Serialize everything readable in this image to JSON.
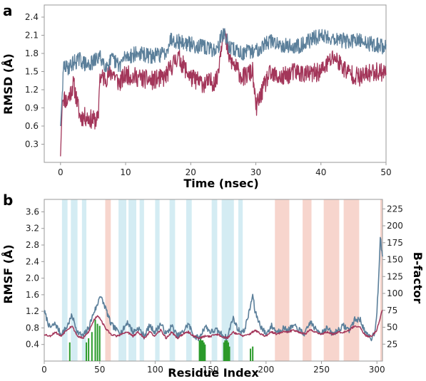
{
  "colors": {
    "series_blue": "#5b7f9a",
    "series_red": "#a3365a",
    "helix_band": "#d4ecf3",
    "sheet_band": "#f7d5cd",
    "contact_bars": "#2a9a2a",
    "axis": "#9a9a9a",
    "text": "#222222"
  },
  "panels": {
    "a": {
      "letter": "a"
    },
    "b": {
      "letter": "b"
    }
  },
  "chart_data": [
    {
      "type": "line",
      "panel": "a",
      "title": "",
      "xlabel": "Time (nsec)",
      "ylabel": "RMSD (Å)",
      "xlim": [
        -2.5,
        50
      ],
      "ylim": [
        0,
        2.6
      ],
      "xticks": [
        0,
        10,
        20,
        30,
        40,
        50
      ],
      "yticks": [
        0.3,
        0.6,
        0.9,
        1.2,
        1.5,
        1.8,
        2.1,
        2.4
      ],
      "xtick_labels": [
        "0",
        "10",
        "20",
        "30",
        "40",
        "50"
      ],
      "ytick_labels": [
        "0.3",
        "0.6",
        "0.9",
        "1.2",
        "1.5",
        "1.8",
        "2.1",
        "2.4"
      ],
      "grid": false,
      "series": [
        {
          "color": "blue",
          "x": [
            0,
            0.5,
            1,
            2,
            3,
            4,
            5,
            6,
            7,
            8,
            9,
            10,
            12,
            14,
            16,
            17,
            18,
            20,
            22,
            24,
            25,
            26,
            28,
            30,
            32,
            34,
            36,
            38,
            40,
            42,
            44,
            46,
            48,
            50
          ],
          "y": [
            0.6,
            1.6,
            1.55,
            1.65,
            1.7,
            1.6,
            1.65,
            1.75,
            1.6,
            1.7,
            1.6,
            1.75,
            1.8,
            1.75,
            1.8,
            2.05,
            2.0,
            1.95,
            1.9,
            1.85,
            2.15,
            1.9,
            1.8,
            1.85,
            2.0,
            1.95,
            1.9,
            2.0,
            2.1,
            2.05,
            2.0,
            2.0,
            1.95,
            1.9
          ]
        },
        {
          "color": "red",
          "x": [
            0,
            0.3,
            1,
            2,
            3,
            4,
            5,
            5.8,
            6,
            7,
            8,
            9,
            10,
            12,
            14,
            16,
            18,
            20,
            22,
            24,
            25,
            26,
            28,
            29.5,
            30,
            32,
            34,
            36,
            38,
            40,
            42,
            44,
            46,
            48,
            50
          ],
          "y": [
            0.1,
            1.1,
            1.0,
            1.3,
            0.75,
            0.75,
            0.7,
            0.7,
            1.4,
            1.4,
            1.5,
            1.3,
            1.45,
            1.4,
            1.35,
            1.4,
            1.75,
            1.4,
            1.3,
            1.35,
            2.2,
            1.7,
            1.4,
            1.5,
            0.9,
            1.45,
            1.4,
            1.5,
            1.45,
            1.5,
            1.75,
            1.5,
            1.4,
            1.5,
            1.5
          ]
        }
      ]
    },
    {
      "type": "line",
      "panel": "b",
      "title": "",
      "xlabel": "Residue Index",
      "ylabel": "RMSF (Å)",
      "ylabel_right": "B-factor",
      "xlim": [
        0,
        305
      ],
      "ylim": [
        0,
        3.9
      ],
      "ylim_right": [
        0,
        239
      ],
      "xticks": [
        0,
        50,
        100,
        150,
        200,
        250,
        300
      ],
      "yticks": [
        0.4,
        0.8,
        1.2,
        1.6,
        2.0,
        2.4,
        2.8,
        3.2,
        3.6
      ],
      "yticks_right": [
        25,
        50,
        75,
        100,
        125,
        150,
        175,
        200,
        225
      ],
      "xtick_labels": [
        "0",
        "50",
        "100",
        "150",
        "200",
        "250",
        "300"
      ],
      "ytick_labels": [
        "0.4",
        "0.8",
        "1.2",
        "1.6",
        "2.0",
        "2.4",
        "2.8",
        "3.2",
        "3.6"
      ],
      "ytick_labels_right": [
        "25",
        "50",
        "75",
        "100",
        "125",
        "150",
        "175",
        "200",
        "225"
      ],
      "grid": false,
      "helix_bands": [
        [
          16,
          21
        ],
        [
          24,
          30
        ],
        [
          34,
          38
        ],
        [
          67,
          74
        ],
        [
          76,
          83
        ],
        [
          86,
          90
        ],
        [
          100,
          104
        ],
        [
          113,
          118
        ],
        [
          128,
          133
        ],
        [
          151,
          156
        ],
        [
          160,
          171
        ],
        [
          175,
          179
        ]
      ],
      "sheet_bands": [
        [
          55,
          60
        ],
        [
          208,
          221
        ],
        [
          233,
          241
        ],
        [
          252,
          266
        ],
        [
          270,
          284
        ],
        [
          303,
          307
        ]
      ],
      "contact_bars": [
        {
          "x": 23,
          "h": 0.45
        },
        {
          "x": 38,
          "h": 0.45
        },
        {
          "x": 40,
          "h": 0.55
        },
        {
          "x": 43,
          "h": 0.7
        },
        {
          "x": 46,
          "h": 1.0
        },
        {
          "x": 48,
          "h": 0.9
        },
        {
          "x": 50,
          "h": 0.85
        },
        {
          "x": 140,
          "h": 0.5
        },
        {
          "x": 141,
          "h": 0.55
        },
        {
          "x": 142,
          "h": 0.5
        },
        {
          "x": 143,
          "h": 0.5
        },
        {
          "x": 144,
          "h": 0.45
        },
        {
          "x": 145,
          "h": 0.4
        },
        {
          "x": 162,
          "h": 0.45
        },
        {
          "x": 163,
          "h": 0.5
        },
        {
          "x": 164,
          "h": 0.55
        },
        {
          "x": 165,
          "h": 0.5
        },
        {
          "x": 166,
          "h": 0.45
        },
        {
          "x": 167,
          "h": 0.35
        },
        {
          "x": 186,
          "h": 0.3
        },
        {
          "x": 188,
          "h": 0.35
        }
      ],
      "series": [
        {
          "color": "blue",
          "axis": "left",
          "x": [
            0,
            5,
            10,
            15,
            20,
            25,
            30,
            35,
            40,
            45,
            48,
            50,
            55,
            60,
            65,
            70,
            75,
            80,
            85,
            90,
            95,
            100,
            105,
            110,
            115,
            120,
            125,
            130,
            135,
            140,
            145,
            150,
            155,
            160,
            165,
            170,
            175,
            180,
            185,
            188,
            190,
            195,
            200,
            205,
            210,
            215,
            220,
            225,
            230,
            235,
            240,
            245,
            250,
            255,
            260,
            265,
            270,
            275,
            280,
            285,
            290,
            295,
            298,
            300,
            302,
            303,
            305
          ],
          "y": [
            1.2,
            0.8,
            0.9,
            0.65,
            0.8,
            1.1,
            0.7,
            0.6,
            0.8,
            1.2,
            1.35,
            1.6,
            1.3,
            0.9,
            0.75,
            0.7,
            0.95,
            0.7,
            0.8,
            0.6,
            0.85,
            0.7,
            0.9,
            0.65,
            0.85,
            0.6,
            0.7,
            0.9,
            0.6,
            0.55,
            0.85,
            0.7,
            0.75,
            0.65,
            0.55,
            1.05,
            0.75,
            0.7,
            1.2,
            1.6,
            1.2,
            0.85,
            0.65,
            0.85,
            0.7,
            0.8,
            0.75,
            0.85,
            0.75,
            0.65,
            0.95,
            0.75,
            0.7,
            0.8,
            0.65,
            0.75,
            0.85,
            0.75,
            1.0,
            1.0,
            0.65,
            0.55,
            0.7,
            1.2,
            2.2,
            3.0,
            2.5
          ]
        },
        {
          "color": "red",
          "axis": "left",
          "x": [
            0,
            5,
            10,
            15,
            20,
            25,
            30,
            35,
            40,
            45,
            48,
            50,
            55,
            60,
            65,
            70,
            75,
            80,
            85,
            90,
            95,
            100,
            105,
            110,
            115,
            120,
            125,
            130,
            135,
            140,
            145,
            150,
            155,
            160,
            165,
            170,
            175,
            180,
            185,
            188,
            190,
            195,
            200,
            205,
            210,
            215,
            220,
            225,
            230,
            235,
            240,
            245,
            250,
            255,
            260,
            265,
            270,
            275,
            280,
            285,
            290,
            295,
            300,
            305
          ],
          "y": [
            0.65,
            0.6,
            0.7,
            0.6,
            0.75,
            0.85,
            0.6,
            0.55,
            0.7,
            1.0,
            1.1,
            1.05,
            0.8,
            0.65,
            0.6,
            0.65,
            0.7,
            0.6,
            0.7,
            0.55,
            0.7,
            0.6,
            0.75,
            0.55,
            0.7,
            0.55,
            0.65,
            0.7,
            0.6,
            0.55,
            0.6,
            0.6,
            0.65,
            0.6,
            0.55,
            0.7,
            0.65,
            0.6,
            0.65,
            0.7,
            0.75,
            0.65,
            0.6,
            0.7,
            0.65,
            0.7,
            0.7,
            0.75,
            0.7,
            0.65,
            0.75,
            0.7,
            0.65,
            0.7,
            0.65,
            0.7,
            0.7,
            0.75,
            0.85,
            0.8,
            0.6,
            0.6,
            0.75,
            1.25
          ]
        }
      ]
    }
  ]
}
